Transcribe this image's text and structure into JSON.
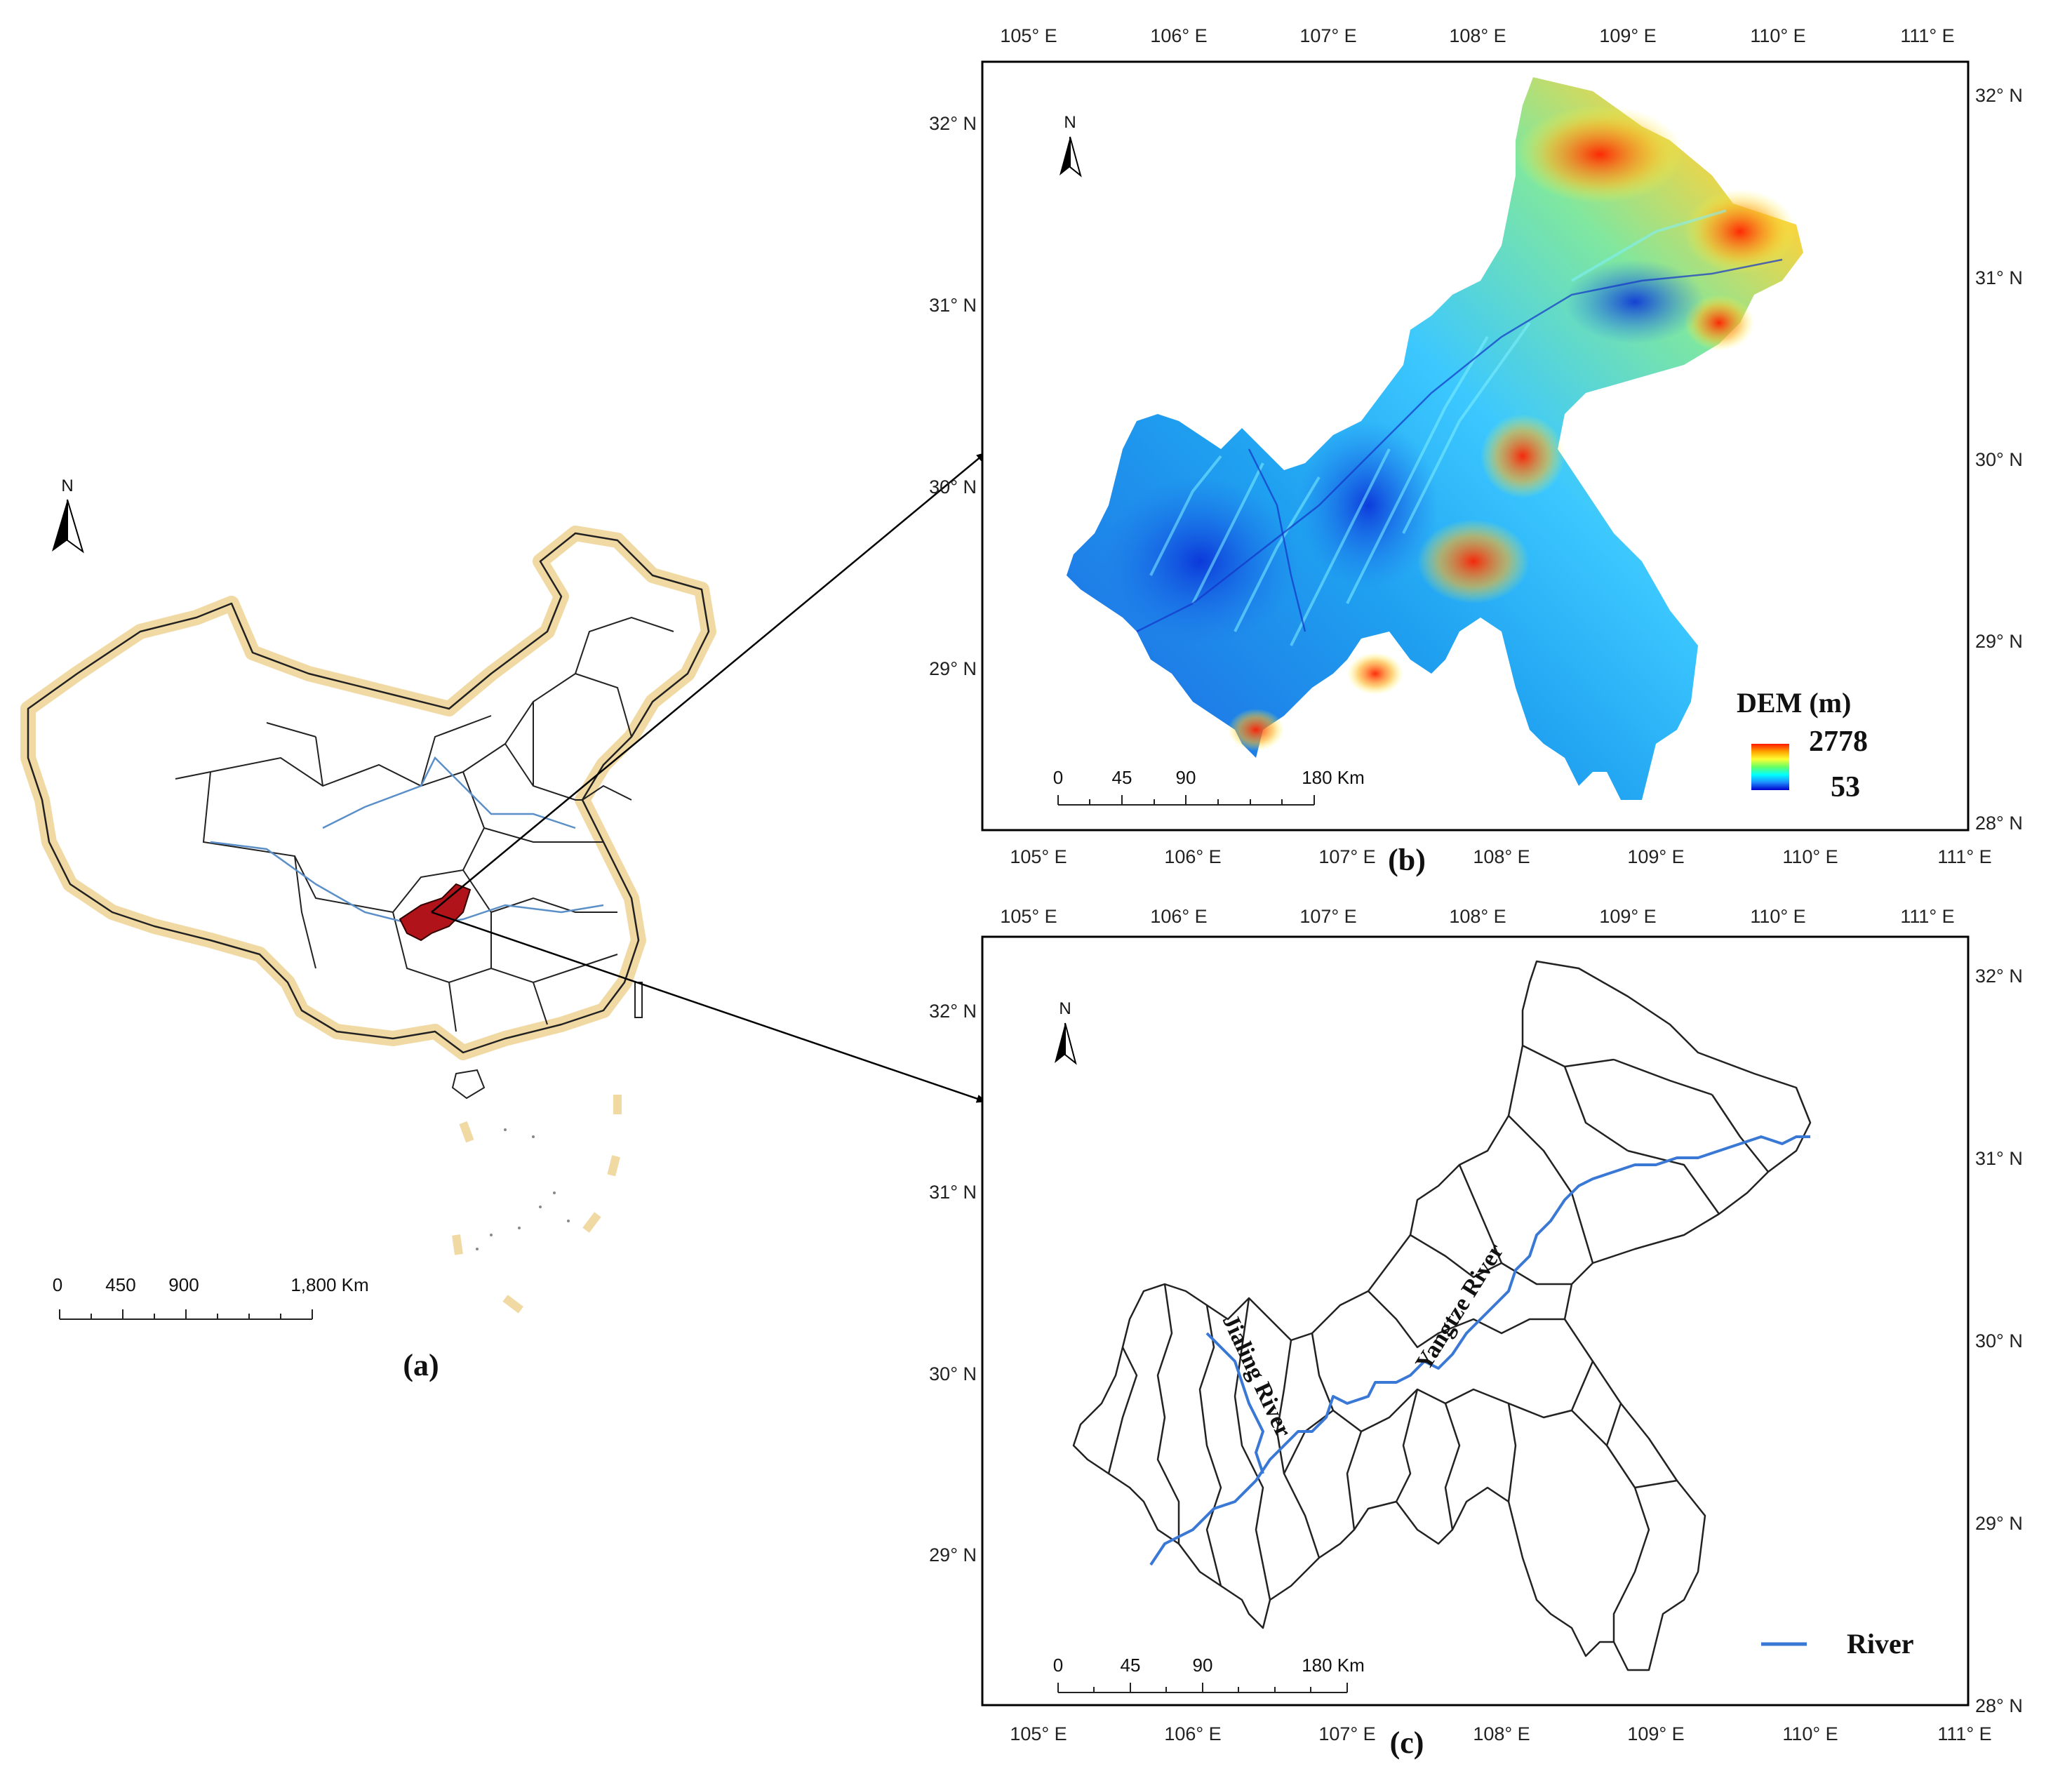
{
  "panels": {
    "a": {
      "label": "(a)",
      "north": "N",
      "scale": {
        "ticks": [
          "0",
          "450",
          "900",
          "1,800 Km"
        ]
      }
    },
    "b": {
      "label": "(b)",
      "north": "N",
      "lon_labels": [
        "105° E",
        "106° E",
        "107° E",
        "108° E",
        "109° E",
        "110° E",
        "111° E"
      ],
      "lat_labels_left": [
        "32° N",
        "31° N",
        "30° N",
        "29° N"
      ],
      "lat_labels_right": [
        "32° N",
        "31° N",
        "30° N",
        "29° N",
        "28° N"
      ],
      "scale": {
        "ticks": [
          "0",
          "45",
          "90",
          "180 Km"
        ]
      },
      "legend": {
        "title": "DEM (m)",
        "max": "2778",
        "min": "53",
        "ramp_colors": [
          "#ff1a00",
          "#ffa500",
          "#ffff33",
          "#66ff66",
          "#00ffff",
          "#1e90ff",
          "#0000cc"
        ]
      }
    },
    "c": {
      "label": "(c)",
      "north": "N",
      "lon_labels": [
        "105° E",
        "106° E",
        "107° E",
        "108° E",
        "109° E",
        "110° E",
        "111° E"
      ],
      "lat_labels_left": [
        "32° N",
        "31° N",
        "30° N",
        "29° N"
      ],
      "lat_labels_right": [
        "32° N",
        "31° N",
        "30° N",
        "29° N",
        "28° N"
      ],
      "scale": {
        "ticks": [
          "0",
          "45",
          "90",
          "180 Km"
        ]
      },
      "rivers": [
        "Jialing River",
        "Yangtze River"
      ],
      "legend": {
        "label": "River",
        "color": "#3a78d6"
      }
    }
  },
  "colors": {
    "highlight": "#b0131a",
    "boundary_glow": "#f1d9a4",
    "river": "#3a78d6",
    "frame": "#000000"
  }
}
